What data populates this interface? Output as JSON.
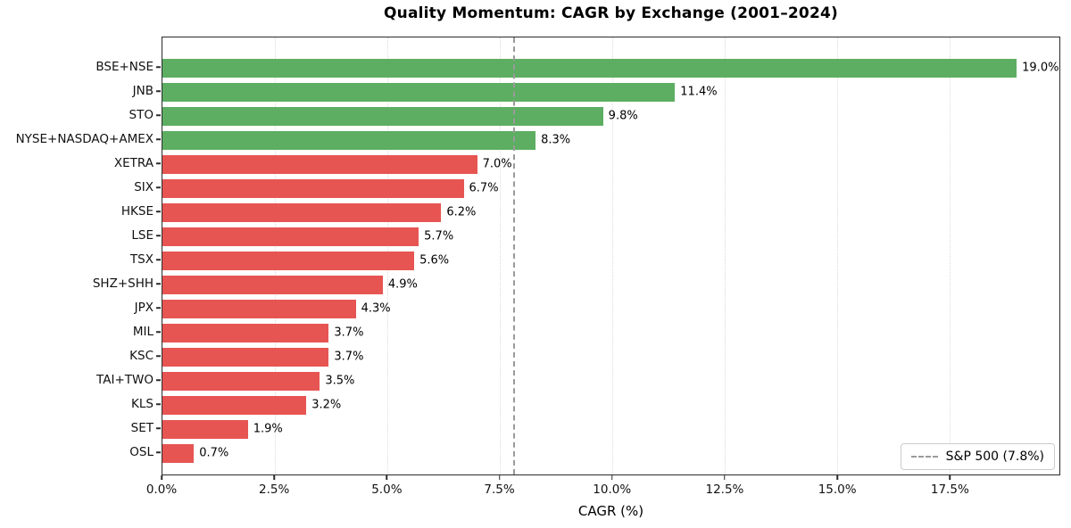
{
  "chart_data": {
    "type": "bar",
    "orientation": "horizontal",
    "title": "Quality Momentum: CAGR by Exchange (2001–2024)",
    "xlabel": "CAGR (%)",
    "categories": [
      "BSE+NSE",
      "JNB",
      "STO",
      "NYSE+NASDAQ+AMEX",
      "XETRA",
      "SIX",
      "HKSE",
      "LSE",
      "TSX",
      "SHZ+SHH",
      "JPX",
      "MIL",
      "KSC",
      "TAI+TWO",
      "KLS",
      "SET",
      "OSL"
    ],
    "values": [
      19.0,
      11.4,
      9.8,
      8.3,
      7.0,
      6.7,
      6.2,
      5.7,
      5.6,
      4.9,
      4.3,
      3.7,
      3.7,
      3.5,
      3.2,
      1.9,
      0.7
    ],
    "value_labels": [
      "19.0%",
      "11.4%",
      "9.8%",
      "8.3%",
      "7.0%",
      "6.7%",
      "6.2%",
      "5.7%",
      "5.6%",
      "4.9%",
      "4.3%",
      "3.7%",
      "3.7%",
      "3.5%",
      "3.2%",
      "1.9%",
      "0.7%"
    ],
    "xlim": [
      0,
      19.95
    ],
    "xticks": [
      0,
      2.5,
      5,
      7.5,
      10,
      12.5,
      15,
      17.5
    ],
    "xtick_labels": [
      "0.0%",
      "2.5%",
      "5.0%",
      "7.5%",
      "10.0%",
      "12.5%",
      "15.0%",
      "17.5%"
    ],
    "grid": "vertical-dotted",
    "legend_position": "lower right",
    "reference_line": {
      "value": 7.8,
      "legend_label": "S&P 500 (7.8%)",
      "color": "#9a9a9a",
      "style": "dashed"
    },
    "colors": {
      "above_benchmark": "#5dae62",
      "below_benchmark": "#e65552",
      "grid": "#dcdcdc",
      "spine": "#2b2b2b"
    }
  }
}
